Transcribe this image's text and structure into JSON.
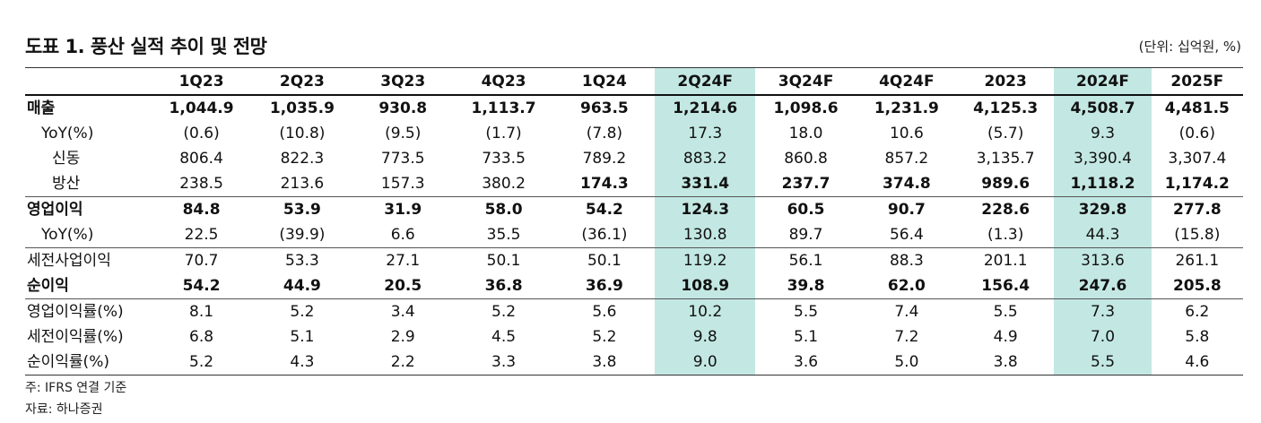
{
  "title": "도표 1. 풍산 실적 추이 및 전망",
  "unit": "(단위: 십억원, %)",
  "columns": [
    "",
    "1Q23",
    "2Q23",
    "3Q23",
    "4Q23",
    "1Q24",
    "2Q24F",
    "3Q24F",
    "4Q24F",
    "2023",
    "2024F",
    "2025F"
  ],
  "highlight_columns": [
    6,
    10
  ],
  "highlight_color": "#c3e8e3",
  "rows": [
    {
      "label": "매출",
      "values": [
        "1,044.9",
        "1,035.9",
        "930.8",
        "1,113.7",
        "963.5",
        "1,214.6",
        "1,098.6",
        "1,231.9",
        "4,125.3",
        "4,508.7",
        "4,481.5"
      ]
    },
    {
      "label": "YoY(%)",
      "values": [
        "(0.6)",
        "(10.8)",
        "(9.5)",
        "(1.7)",
        "(7.8)",
        "17.3",
        "18.0",
        "10.6",
        "(5.7)",
        "9.3",
        "(0.6)"
      ]
    },
    {
      "label": "신동",
      "values": [
        "806.4",
        "822.3",
        "773.5",
        "733.5",
        "789.2",
        "883.2",
        "860.8",
        "857.2",
        "3,135.7",
        "3,390.4",
        "3,307.4"
      ]
    },
    {
      "label": "방산",
      "values": [
        "238.5",
        "213.6",
        "157.3",
        "380.2",
        "174.3",
        "331.4",
        "237.7",
        "374.8",
        "989.6",
        "1,118.2",
        "1,174.2"
      ]
    },
    {
      "label": "영업이익",
      "values": [
        "84.8",
        "53.9",
        "31.9",
        "58.0",
        "54.2",
        "124.3",
        "60.5",
        "90.7",
        "228.6",
        "329.8",
        "277.8"
      ]
    },
    {
      "label": "YoY(%)",
      "values": [
        "22.5",
        "(39.9)",
        "6.6",
        "35.5",
        "(36.1)",
        "130.8",
        "89.7",
        "56.4",
        "(1.3)",
        "44.3",
        "(15.8)"
      ]
    },
    {
      "label": "세전사업이익",
      "values": [
        "70.7",
        "53.3",
        "27.1",
        "50.1",
        "50.1",
        "119.2",
        "56.1",
        "88.3",
        "201.1",
        "313.6",
        "261.1"
      ]
    },
    {
      "label": "순이익",
      "values": [
        "54.2",
        "44.9",
        "20.5",
        "36.8",
        "36.9",
        "108.9",
        "39.8",
        "62.0",
        "156.4",
        "247.6",
        "205.8"
      ]
    },
    {
      "label": "영업이익률(%)",
      "values": [
        "8.1",
        "5.2",
        "3.4",
        "5.2",
        "5.6",
        "10.2",
        "5.5",
        "7.4",
        "5.5",
        "7.3",
        "6.2"
      ]
    },
    {
      "label": "세전이익률(%)",
      "values": [
        "6.8",
        "5.1",
        "2.9",
        "4.5",
        "5.2",
        "9.8",
        "5.1",
        "7.2",
        "4.9",
        "7.0",
        "5.8"
      ]
    },
    {
      "label": "순이익률(%)",
      "values": [
        "5.2",
        "4.3",
        "2.2",
        "3.3",
        "3.8",
        "9.0",
        "3.6",
        "5.0",
        "3.8",
        "5.5",
        "4.6"
      ]
    }
  ],
  "notes": [
    "주: IFRS 연결 기준",
    "자료: 하나증권"
  ]
}
